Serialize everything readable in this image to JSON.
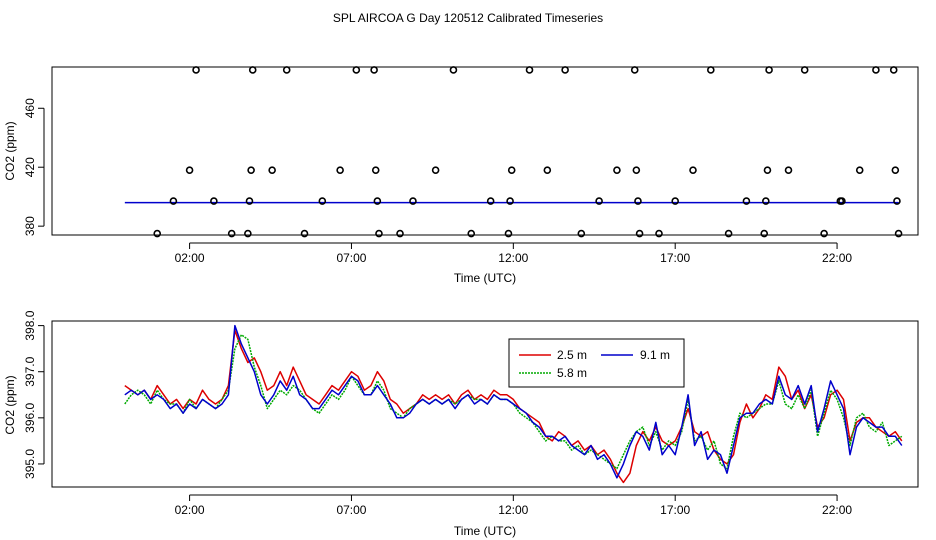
{
  "figure_title": "SPL AIRCOA G  Day 120512  Calibrated Timeseries",
  "chart_data": [
    {
      "type": "scatter+line",
      "title": "",
      "xlabel": "Time (UTC)",
      "ylabel": "CO2 (ppm)",
      "xlim": [
        -2.25,
        24.5
      ],
      "ylim": [
        374,
        488
      ],
      "x_ticks": [
        2,
        7,
        12,
        17,
        22
      ],
      "x_tick_labels": [
        "02:00",
        "07:00",
        "12:00",
        "17:00",
        "22:00"
      ],
      "y_ticks": [
        380,
        420,
        460
      ],
      "y_tick_labels": [
        "380",
        "420",
        "460"
      ],
      "grid": false,
      "points": {
        "name": "calibration / reference samples",
        "x": [
          1.0,
          1.5,
          2.0,
          2.2,
          2.75,
          3.3,
          3.8,
          3.85,
          3.9,
          3.95,
          4.55,
          5.0,
          5.55,
          6.1,
          6.65,
          7.15,
          7.7,
          7.75,
          7.8,
          7.85,
          8.5,
          8.9,
          9.6,
          10.15,
          10.7,
          11.3,
          11.85,
          11.9,
          11.95,
          12.5,
          13.05,
          13.6,
          14.1,
          14.65,
          15.2,
          15.75,
          15.8,
          15.85,
          15.9,
          16.5,
          17.0,
          17.55,
          18.1,
          18.65,
          19.2,
          19.75,
          19.8,
          19.85,
          19.9,
          20.5,
          21.0,
          21.6,
          22.1,
          22.15,
          22.7,
          23.2,
          23.75,
          23.8,
          23.85,
          23.9
        ],
        "y": [
          375,
          397,
          418,
          486,
          397,
          375,
          375,
          397,
          418,
          486,
          418,
          486,
          375,
          397,
          418,
          486,
          486,
          418,
          397,
          375,
          375,
          397,
          418,
          486,
          375,
          397,
          375,
          397,
          418,
          486,
          418,
          486,
          375,
          397,
          418,
          486,
          418,
          397,
          375,
          375,
          397,
          418,
          486,
          375,
          397,
          375,
          397,
          418,
          486,
          418,
          486,
          375,
          397,
          397,
          418,
          486,
          486,
          418,
          397,
          375
        ]
      },
      "line": {
        "name": "CO2 timeseries",
        "color": "#0000cc",
        "x_start": 0.0,
        "x_end": 23.9,
        "value": 396
      }
    },
    {
      "type": "line",
      "title": "",
      "xlabel": "Time (UTC)",
      "ylabel": "CO2 (ppm)",
      "xlim": [
        -2.25,
        24.5
      ],
      "ylim": [
        394.5,
        398.1
      ],
      "x_ticks": [
        2,
        7,
        12,
        17,
        22
      ],
      "x_tick_labels": [
        "02:00",
        "07:00",
        "12:00",
        "17:00",
        "22:00"
      ],
      "y_ticks": [
        395.0,
        396.0,
        397.0,
        398.0
      ],
      "y_tick_labels": [
        "395.0",
        "396.0",
        "397.0",
        "398.0"
      ],
      "grid": false,
      "legend": {
        "position": "top-right",
        "entries": [
          "2.5 m",
          "5.8 m",
          "9.1 m"
        ]
      },
      "x": [
        0.0,
        0.2,
        0.4,
        0.6,
        0.8,
        1.0,
        1.2,
        1.4,
        1.6,
        1.8,
        2.0,
        2.2,
        2.4,
        2.6,
        2.8,
        3.0,
        3.2,
        3.4,
        3.6,
        3.8,
        4.0,
        4.2,
        4.4,
        4.6,
        4.8,
        5.0,
        5.2,
        5.4,
        5.6,
        5.8,
        6.0,
        6.2,
        6.4,
        6.6,
        6.8,
        7.0,
        7.2,
        7.4,
        7.6,
        7.8,
        8.0,
        8.2,
        8.4,
        8.6,
        8.8,
        9.0,
        9.2,
        9.4,
        9.6,
        9.8,
        10.0,
        10.2,
        10.4,
        10.6,
        10.8,
        11.0,
        11.2,
        11.4,
        11.6,
        11.8,
        12.0,
        12.2,
        12.4,
        12.6,
        12.8,
        13.0,
        13.2,
        13.4,
        13.6,
        13.8,
        14.0,
        14.2,
        14.4,
        14.6,
        14.8,
        15.0,
        15.2,
        15.4,
        15.6,
        15.8,
        16.0,
        16.2,
        16.4,
        16.6,
        16.8,
        17.0,
        17.2,
        17.4,
        17.6,
        17.8,
        18.0,
        18.2,
        18.4,
        18.6,
        18.8,
        19.0,
        19.2,
        19.4,
        19.6,
        19.8,
        20.0,
        20.2,
        20.4,
        20.6,
        20.8,
        21.0,
        21.2,
        21.4,
        21.6,
        21.8,
        22.0,
        22.2,
        22.4,
        22.6,
        22.8,
        23.0,
        23.2,
        23.4,
        23.6,
        23.8,
        24.0
      ],
      "series": [
        {
          "name": "2.5 m",
          "color": "#dd0000",
          "values": [
            396.7,
            396.6,
            396.5,
            396.6,
            396.4,
            396.7,
            396.5,
            396.3,
            396.4,
            396.2,
            396.4,
            396.3,
            396.6,
            396.4,
            396.3,
            396.4,
            396.7,
            397.9,
            397.5,
            397.2,
            397.3,
            397.0,
            396.6,
            396.7,
            397.0,
            396.7,
            397.1,
            396.8,
            396.5,
            396.4,
            396.3,
            396.5,
            396.7,
            396.6,
            396.8,
            397.0,
            396.9,
            396.6,
            396.7,
            397.0,
            396.8,
            396.4,
            396.3,
            396.1,
            396.2,
            396.3,
            396.5,
            396.4,
            396.5,
            396.4,
            396.5,
            396.3,
            396.5,
            396.6,
            396.4,
            396.5,
            396.4,
            396.6,
            396.5,
            396.5,
            396.4,
            396.2,
            396.1,
            396.0,
            395.9,
            395.6,
            395.5,
            395.7,
            395.6,
            395.4,
            395.5,
            395.3,
            395.4,
            395.2,
            395.3,
            395.1,
            394.8,
            394.6,
            394.8,
            395.4,
            395.7,
            395.5,
            395.8,
            395.5,
            395.4,
            395.5,
            395.8,
            396.2,
            395.7,
            395.6,
            395.7,
            395.3,
            395.1,
            395.0,
            395.2,
            395.9,
            396.3,
            396.0,
            396.2,
            396.5,
            396.4,
            397.1,
            396.9,
            396.4,
            396.6,
            396.2,
            396.5,
            395.8,
            396.0,
            396.5,
            396.6,
            396.4,
            395.5,
            395.9,
            396.0,
            396.0,
            395.8,
            395.7,
            395.6,
            395.7,
            395.5
          ]
        },
        {
          "name": "5.8 m",
          "color": "#00aa00",
          "values": [
            396.3,
            396.5,
            396.6,
            396.5,
            396.3,
            396.6,
            396.4,
            396.3,
            396.3,
            396.1,
            396.4,
            396.2,
            396.4,
            396.3,
            396.2,
            396.4,
            396.6,
            397.5,
            397.8,
            397.7,
            397.1,
            396.7,
            396.2,
            396.4,
            396.6,
            396.5,
            396.7,
            396.6,
            396.4,
            396.2,
            396.1,
            396.3,
            396.5,
            396.4,
            396.6,
            396.9,
            396.7,
            396.5,
            396.5,
            396.8,
            396.6,
            396.2,
            396.1,
            396.0,
            396.2,
            396.3,
            396.4,
            396.3,
            396.4,
            396.3,
            396.4,
            396.3,
            396.4,
            396.5,
            396.4,
            396.4,
            396.3,
            396.5,
            396.4,
            396.4,
            396.3,
            396.1,
            396.0,
            395.9,
            395.7,
            395.5,
            395.6,
            395.5,
            395.5,
            395.3,
            395.4,
            395.2,
            395.3,
            395.2,
            395.1,
            395.0,
            394.9,
            395.2,
            395.5,
            395.7,
            395.8,
            395.4,
            395.7,
            395.3,
            395.5,
            395.4,
            395.7,
            396.4,
            395.5,
            395.6,
            395.3,
            395.5,
            395.0,
            394.9,
            395.6,
            396.1,
            396.0,
            396.1,
            396.2,
            396.3,
            396.3,
            396.8,
            396.3,
            396.2,
            396.5,
            396.2,
            396.6,
            395.6,
            396.1,
            396.6,
            396.4,
            396.0,
            395.4,
            396.0,
            396.1,
            395.8,
            395.7,
            395.9,
            395.4,
            395.5,
            395.6
          ]
        },
        {
          "name": "9.1 m",
          "color": "#0000cc",
          "values": [
            396.5,
            396.6,
            396.5,
            396.6,
            396.4,
            396.5,
            396.4,
            396.2,
            396.3,
            396.1,
            396.3,
            396.2,
            396.4,
            396.3,
            396.2,
            396.3,
            396.5,
            398.0,
            397.6,
            397.3,
            397.0,
            396.5,
            396.3,
            396.5,
            396.8,
            396.6,
            396.9,
            396.5,
            396.4,
            396.2,
            396.2,
            396.4,
            396.6,
            396.5,
            396.7,
            396.9,
            396.8,
            396.5,
            396.5,
            396.7,
            396.5,
            396.3,
            396.0,
            396.0,
            396.1,
            396.3,
            396.4,
            396.3,
            396.4,
            396.3,
            396.4,
            396.2,
            396.4,
            396.5,
            396.3,
            396.4,
            396.3,
            396.5,
            396.4,
            396.4,
            396.3,
            396.2,
            396.1,
            395.9,
            395.8,
            395.6,
            395.6,
            395.5,
            395.6,
            395.4,
            395.3,
            395.2,
            395.4,
            395.1,
            395.2,
            395.0,
            394.7,
            395.0,
            395.4,
            395.7,
            395.6,
            395.3,
            395.9,
            395.2,
            395.4,
            395.2,
            395.8,
            396.5,
            395.4,
            395.7,
            395.1,
            395.3,
            395.2,
            394.8,
            395.4,
            396.0,
            396.1,
            396.1,
            396.3,
            396.4,
            396.3,
            396.9,
            396.5,
            396.4,
            396.7,
            396.3,
            396.7,
            395.7,
            396.2,
            396.8,
            396.5,
            396.2,
            395.2,
            395.8,
            396.0,
            395.9,
            395.8,
            395.8,
            395.6,
            395.6,
            395.4
          ]
        }
      ]
    }
  ]
}
